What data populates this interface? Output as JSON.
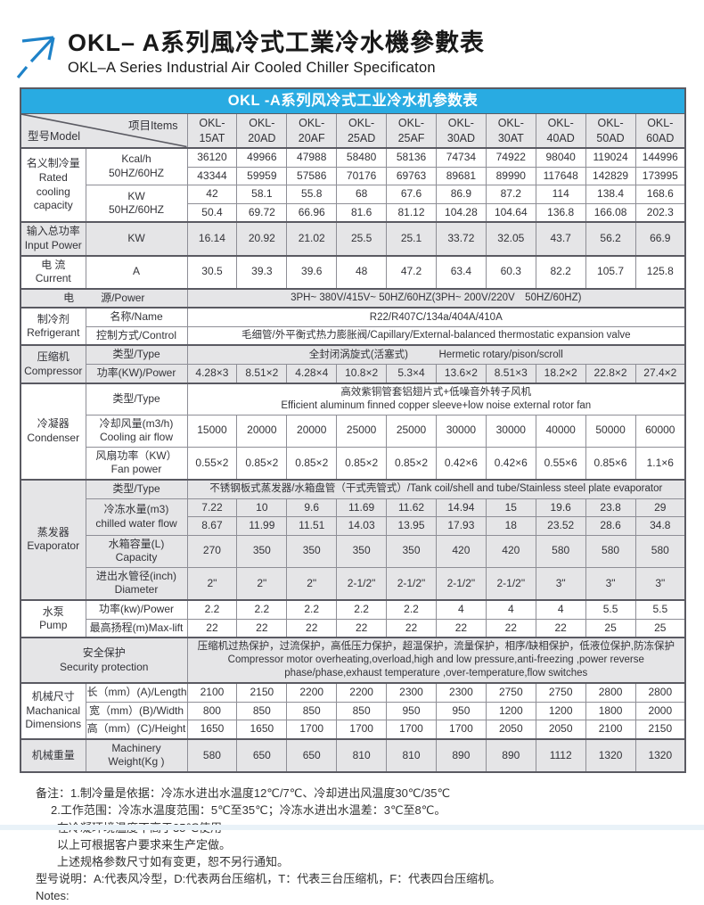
{
  "page": {
    "title_zh": "OKL– A系列風冷式工業冷水機參數表",
    "title_en": "OKL–A Series Industrial Air Cooled Chiller Specificaton",
    "accent_blue": "#29abe2",
    "arrow_blue": "#1e82c8",
    "shade_gray": "#e5e5e7"
  },
  "table": {
    "banner": "OKL -A系列风冷式工业冷水机参数表",
    "corner": {
      "model_label": "型号Model",
      "items_label": "项目Items"
    },
    "models": [
      "OKL-15AT",
      "OKL-20AD",
      "OKL-20AF",
      "OKL-25AD",
      "OKL-25AF",
      "OKL-30AD",
      "OKL-30AT",
      "OKL-40AD",
      "OKL-50AD",
      "OKL-60AD"
    ],
    "sections": [
      {
        "name": "rated-cooling-capacity",
        "shaded": false,
        "group": [
          "名义制冷量",
          "Rated",
          "cooling",
          "capacity"
        ],
        "rows": [
          {
            "item": [
              "Kcal/h",
              "50HZ/60HZ"
            ],
            "subrows": [
              [
                "36120",
                "49966",
                "47988",
                "58480",
                "58136",
                "74734",
                "74922",
                "98040",
                "119024",
                "144996"
              ],
              [
                "43344",
                "59959",
                "57586",
                "70176",
                "69763",
                "89681",
                "89990",
                "117648",
                "142829",
                "173995"
              ]
            ]
          },
          {
            "item": [
              "KW",
              "50HZ/60HZ"
            ],
            "subrows": [
              [
                "42",
                "58.1",
                "55.8",
                "68",
                "67.6",
                "86.9",
                "87.2",
                "114",
                "138.4",
                "168.6"
              ],
              [
                "50.4",
                "69.72",
                "66.96",
                "81.6",
                "81.12",
                "104.28",
                "104.64",
                "136.8",
                "166.08",
                "202.3"
              ]
            ]
          }
        ]
      },
      {
        "name": "input-power",
        "shaded": true,
        "group": [
          "输入总功率",
          "Input Power"
        ],
        "rows": [
          {
            "item": [
              "KW"
            ],
            "values": [
              "16.14",
              "20.92",
              "21.02",
              "25.5",
              "25.1",
              "33.72",
              "32.05",
              "43.7",
              "56.2",
              "66.9"
            ]
          }
        ]
      },
      {
        "name": "current",
        "shaded": false,
        "group": [
          "电 流",
          "Current"
        ],
        "rows": [
          {
            "item": [
              "A"
            ],
            "values": [
              "30.5",
              "39.3",
              "39.6",
              "48",
              "47.2",
              "63.4",
              "60.3",
              "82.2",
              "105.7",
              "125.8"
            ]
          }
        ]
      },
      {
        "name": "power-supply",
        "shaded": true,
        "label_parts": [
          "电",
          "源/Power"
        ],
        "rows": [
          {
            "merged": [
              "3PH~ 380V/415V~ 50HZ/60HZ(3PH~ 200V/220V　50HZ/60HZ)"
            ]
          }
        ]
      },
      {
        "name": "refrigerant",
        "shaded": false,
        "group": [
          "制冷剂",
          "Refrigerant"
        ],
        "rows": [
          {
            "item": [
              "名称/Name"
            ],
            "merged": [
              "R22/R407C/134a/404A/410A"
            ]
          },
          {
            "item": [
              "控制方式/Control"
            ],
            "merged": [
              "毛细管/外平衡式热力膨胀阀/Capillary/External-balanced thermostatic expansion valve"
            ]
          }
        ]
      },
      {
        "name": "compressor",
        "shaded": true,
        "group": [
          "压缩机",
          "Compressor"
        ],
        "rows": [
          {
            "item": [
              "类型/Type"
            ],
            "merged": [
              "全封闭涡旋式(活塞式)　　　Hermetic rotary/pison/scroll"
            ]
          },
          {
            "item": [
              "功率(KW)/Power"
            ],
            "values": [
              "4.28×3",
              "8.51×2",
              "4.28×4",
              "10.8×2",
              "5.3×4",
              "13.6×2",
              "8.51×3",
              "18.2×2",
              "22.8×2",
              "27.4×2"
            ]
          }
        ]
      },
      {
        "name": "condenser",
        "shaded": false,
        "group": [
          "冷凝器",
          "Condenser"
        ],
        "rows": [
          {
            "item": [
              "类型/Type"
            ],
            "merged": [
              "高效紫铜管套铝翅片式+低噪音外转子风机",
              "Efficient aluminum finned copper sleeve+low noise external rotor fan"
            ]
          },
          {
            "item": [
              "冷却风量(m3/h)",
              "Cooling air flow"
            ],
            "values": [
              "15000",
              "20000",
              "20000",
              "25000",
              "25000",
              "30000",
              "30000",
              "40000",
              "50000",
              "60000"
            ]
          },
          {
            "item": [
              "风扇功率（KW）",
              "Fan power"
            ],
            "values": [
              "0.55×2",
              "0.85×2",
              "0.85×2",
              "0.85×2",
              "0.85×2",
              "0.42×6",
              "0.42×6",
              "0.55×6",
              "0.85×6",
              "1.1×6"
            ]
          }
        ]
      },
      {
        "name": "evaporator",
        "shaded": true,
        "group": [
          "蒸发器",
          "Evaporator"
        ],
        "rows": [
          {
            "item": [
              "类型/Type"
            ],
            "merged": [
              "不锈钢板式蒸发器/水箱盘管（干式壳管式）/Tank coil/shell and tube/Stainless steel plate evaporator"
            ]
          },
          {
            "item": [
              "冷冻水量(m3)",
              "chilled water flow"
            ],
            "subrows": [
              [
                "7.22",
                "10",
                "9.6",
                "11.69",
                "11.62",
                "14.94",
                "15",
                "19.6",
                "23.8",
                "29"
              ],
              [
                "8.67",
                "11.99",
                "11.51",
                "14.03",
                "13.95",
                "17.93",
                "18",
                "23.52",
                "28.6",
                "34.8"
              ]
            ]
          },
          {
            "item": [
              "水箱容量(L)",
              "Capacity"
            ],
            "values": [
              "270",
              "350",
              "350",
              "350",
              "350",
              "420",
              "420",
              "580",
              "580",
              "580"
            ]
          },
          {
            "item": [
              "进出水管径(inch)",
              "Diameter"
            ],
            "values": [
              "2\"",
              "2\"",
              "2\"",
              "2-1/2\"",
              "2-1/2\"",
              "2-1/2\"",
              "2-1/2\"",
              "3\"",
              "3\"",
              "3\""
            ]
          }
        ]
      },
      {
        "name": "pump",
        "shaded": false,
        "group": [
          "水泵",
          "Pump"
        ],
        "rows": [
          {
            "item": [
              "功率(kw)/Power"
            ],
            "values": [
              "2.2",
              "2.2",
              "2.2",
              "2.2",
              "2.2",
              "4",
              "4",
              "4",
              "5.5",
              "5.5"
            ]
          },
          {
            "item": [
              "最高扬程(m)Max-lift"
            ],
            "values": [
              "22",
              "22",
              "22",
              "22",
              "22",
              "22",
              "22",
              "22",
              "25",
              "25"
            ]
          }
        ]
      },
      {
        "name": "security-protection",
        "shaded": true,
        "label_lines": [
          "安全保护",
          "Security protection"
        ],
        "rows": [
          {
            "merged": [
              "压缩机过热保护，过流保护，高低压力保护，超温保护，流量保护，相序/缺相保护，低液位保护,防冻保护",
              "Compressor motor overheating,overload,high and low pressure,anti-freezing ,power reverse",
              "phase/phase,exhaust temperature ,over-temperature,flow switches"
            ]
          }
        ]
      },
      {
        "name": "mechanical-dimensions",
        "shaded": false,
        "group": [
          "机械尺寸",
          "Machanical",
          "Dimensions"
        ],
        "rows": [
          {
            "item": [
              "长（mm）(A)/Length"
            ],
            "values": [
              "2100",
              "2150",
              "2200",
              "2200",
              "2300",
              "2300",
              "2750",
              "2750",
              "2800",
              "2800"
            ]
          },
          {
            "item": [
              "宽（mm）(B)/Width"
            ],
            "values": [
              "800",
              "850",
              "850",
              "850",
              "950",
              "950",
              "1200",
              "1200",
              "1800",
              "2000"
            ]
          },
          {
            "item": [
              "高（mm）(C)/Height"
            ],
            "values": [
              "1650",
              "1650",
              "1700",
              "1700",
              "1700",
              "1700",
              "2050",
              "2050",
              "2100",
              "2150"
            ]
          }
        ]
      },
      {
        "name": "machinery-weight",
        "shaded": true,
        "group": [
          "机械重量"
        ],
        "rows": [
          {
            "item": [
              "Machinery",
              "Weight(Kg )"
            ],
            "values": [
              "580",
              "650",
              "650",
              "810",
              "810",
              "890",
              "890",
              "1112",
              "1320",
              "1320"
            ]
          }
        ]
      }
    ]
  },
  "notes": {
    "lines": [
      {
        "text": "备注：1.制冷量是依据：冷冻水进出水温度12℃/7℃、冷却进出风温度30℃/35℃",
        "indent": 0
      },
      {
        "text": "2.工作范围：冷冻水温度范围：5℃至35℃；冷冻水进出水温差：3℃至8℃。",
        "indent": 1
      },
      {
        "text": "在冷凝环境温度不高于35℃使用",
        "indent": 2
      },
      {
        "text": "以上可根据客户要求来生产定做。",
        "indent": 2
      },
      {
        "text": "上述规格参数尺寸如有变更，恕不另行通知。",
        "indent": 2
      },
      {
        "text": "型号说明：A:代表风冷型，D:代表两台压缩机，T：代表三台压缩机，F：代表四台压缩机。",
        "indent": 0
      },
      {
        "text": "Notes:",
        "indent": 0
      }
    ]
  }
}
